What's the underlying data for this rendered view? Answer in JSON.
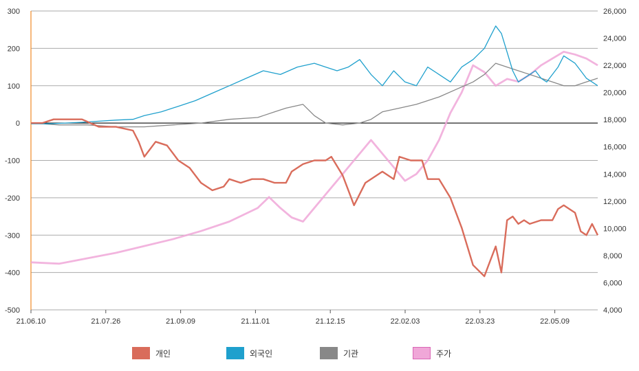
{
  "chart_data": {
    "type": "line",
    "x_ticks": [
      "21.06.10",
      "21.07.26",
      "21.09.09",
      "21.11.01",
      "21.12.15",
      "22.02.03",
      "22.03.23",
      "22.05.09"
    ],
    "left_axis": {
      "ylim": [
        -500,
        300
      ],
      "ticks": [
        "300",
        "200",
        "100",
        "0",
        "-100",
        "-200",
        "-300",
        "-400",
        "-500"
      ]
    },
    "right_axis": {
      "ylim": [
        4000,
        26000
      ],
      "ticks": [
        "26,000",
        "24,000",
        "22,000",
        "20,000",
        "18,000",
        "16,000",
        "14,000",
        "12,000",
        "10,000",
        "8,000",
        "6,000",
        "4,000"
      ]
    },
    "series": [
      {
        "name": "개인",
        "color": "#d96c5b",
        "axis": "left",
        "x": [
          0,
          0.02,
          0.04,
          0.06,
          0.09,
          0.12,
          0.15,
          0.18,
          0.19,
          0.2,
          0.22,
          0.24,
          0.26,
          0.28,
          0.3,
          0.32,
          0.34,
          0.35,
          0.37,
          0.39,
          0.41,
          0.43,
          0.45,
          0.46,
          0.48,
          0.5,
          0.52,
          0.53,
          0.55,
          0.57,
          0.59,
          0.62,
          0.64,
          0.65,
          0.67,
          0.69,
          0.7,
          0.72,
          0.74,
          0.76,
          0.78,
          0.8,
          0.81,
          0.82,
          0.83,
          0.84,
          0.85,
          0.86,
          0.87,
          0.88,
          0.9,
          0.92,
          0.93,
          0.94,
          0.95,
          0.96,
          0.97,
          0.98,
          0.99,
          1
        ],
        "values": [
          0,
          0,
          10,
          10,
          10,
          -10,
          -10,
          -20,
          -50,
          -90,
          -50,
          -60,
          -100,
          -120,
          -160,
          -180,
          -170,
          -150,
          -160,
          -150,
          -150,
          -160,
          -160,
          -130,
          -110,
          -100,
          -100,
          -90,
          -140,
          -220,
          -160,
          -130,
          -150,
          -90,
          -100,
          -100,
          -150,
          -150,
          -200,
          -280,
          -380,
          -410,
          -370,
          -330,
          -400,
          -260,
          -250,
          -270,
          -260,
          -270,
          -260,
          -260,
          -230,
          -220,
          -230,
          -240,
          -290,
          -300,
          -270,
          -300
        ]
      },
      {
        "name": "외국인",
        "color": "#1fa0cd",
        "axis": "left",
        "x": [
          0,
          0.03,
          0.06,
          0.09,
          0.12,
          0.15,
          0.18,
          0.2,
          0.23,
          0.26,
          0.29,
          0.32,
          0.35,
          0.38,
          0.41,
          0.44,
          0.47,
          0.5,
          0.52,
          0.54,
          0.56,
          0.58,
          0.6,
          0.62,
          0.64,
          0.66,
          0.68,
          0.7,
          0.72,
          0.74,
          0.76,
          0.78,
          0.8,
          0.81,
          0.82,
          0.83,
          0.84,
          0.85,
          0.86,
          0.87,
          0.88,
          0.89,
          0.9,
          0.91,
          0.92,
          0.93,
          0.94,
          0.95,
          0.96,
          0.97,
          0.98,
          0.99,
          1
        ],
        "values": [
          -2,
          -2,
          0,
          2,
          5,
          8,
          10,
          20,
          30,
          45,
          60,
          80,
          100,
          120,
          140,
          130,
          150,
          160,
          150,
          140,
          150,
          170,
          130,
          100,
          140,
          110,
          100,
          150,
          130,
          110,
          150,
          170,
          200,
          230,
          260,
          240,
          190,
          140,
          110,
          120,
          130,
          140,
          120,
          110,
          130,
          150,
          180,
          170,
          160,
          140,
          120,
          110,
          100
        ]
      },
      {
        "name": "기관",
        "color": "#888888",
        "axis": "left",
        "x": [
          0,
          0.05,
          0.1,
          0.15,
          0.2,
          0.25,
          0.3,
          0.35,
          0.4,
          0.43,
          0.45,
          0.48,
          0.5,
          0.52,
          0.55,
          0.58,
          0.6,
          0.62,
          0.65,
          0.68,
          0.7,
          0.72,
          0.75,
          0.78,
          0.8,
          0.82,
          0.84,
          0.86,
          0.88,
          0.9,
          0.92,
          0.94,
          0.96,
          0.98,
          1
        ],
        "values": [
          0,
          -5,
          -5,
          -10,
          -10,
          -5,
          0,
          10,
          15,
          30,
          40,
          50,
          20,
          0,
          -5,
          0,
          10,
          30,
          40,
          50,
          60,
          70,
          90,
          110,
          130,
          160,
          150,
          140,
          130,
          120,
          110,
          100,
          100,
          110,
          120
        ]
      },
      {
        "name": "주가",
        "color": "#f0a7d8",
        "axis": "right",
        "x": [
          0,
          0.05,
          0.1,
          0.15,
          0.2,
          0.25,
          0.3,
          0.35,
          0.4,
          0.42,
          0.44,
          0.46,
          0.48,
          0.5,
          0.52,
          0.54,
          0.56,
          0.58,
          0.6,
          0.62,
          0.64,
          0.66,
          0.68,
          0.7,
          0.72,
          0.74,
          0.76,
          0.78,
          0.8,
          0.82,
          0.84,
          0.86,
          0.88,
          0.9,
          0.92,
          0.94,
          0.96,
          0.98,
          1
        ],
        "values": [
          7500,
          7400,
          7800,
          8200,
          8700,
          9200,
          9800,
          10500,
          11500,
          12300,
          11500,
          10800,
          10500,
          11500,
          12500,
          13500,
          14500,
          15500,
          16500,
          15500,
          14500,
          13500,
          14000,
          15000,
          16500,
          18500,
          20000,
          22000,
          21500,
          20500,
          21000,
          20800,
          21300,
          22000,
          22500,
          23000,
          22800,
          22500,
          22000
        ]
      }
    ],
    "legend_position": "bottom"
  }
}
